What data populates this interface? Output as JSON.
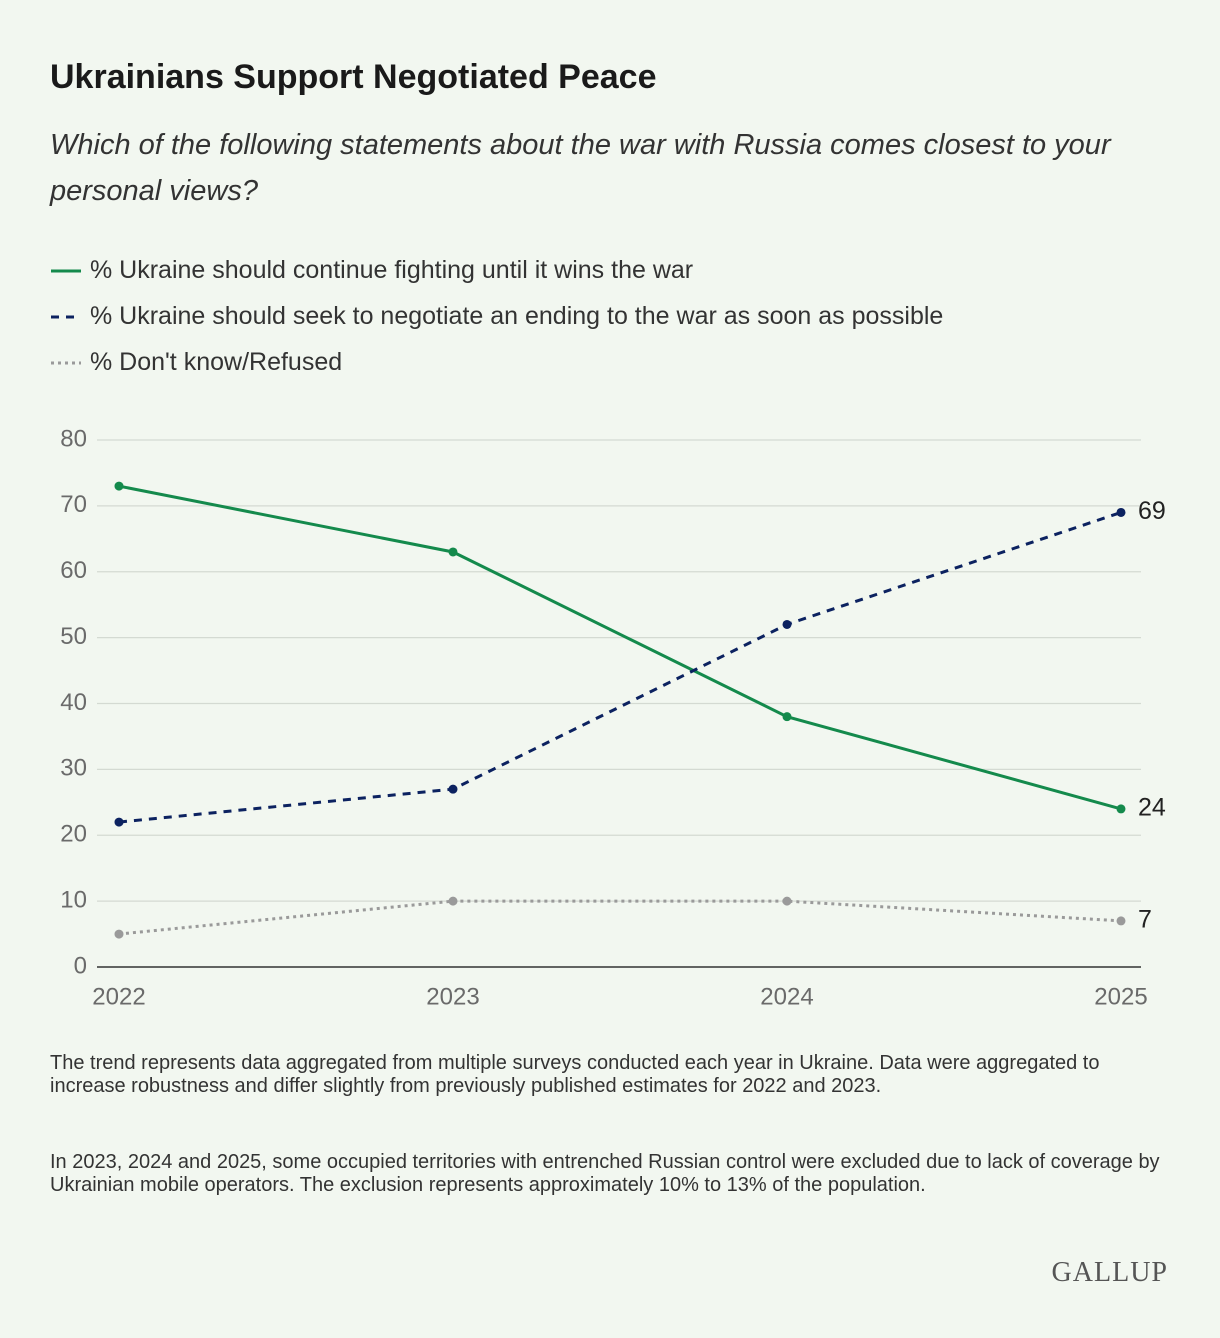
{
  "chart_data": {
    "type": "line",
    "title": "Ukrainians Support Negotiated Peace",
    "subtitle": "Which of the following statements about the war with Russia comes closest to your personal views?",
    "categories": [
      "2022",
      "2023",
      "2024",
      "2025"
    ],
    "series": [
      {
        "name": "% Ukraine should continue fighting until it wins the war",
        "color": "#148a4c",
        "line_style": "solid",
        "values": [
          73,
          63,
          38,
          24
        ]
      },
      {
        "name": "% Ukraine should seek to negotiate an ending to the war as soon as possible",
        "color": "#0c2260",
        "line_style": "dashed",
        "values": [
          22,
          27,
          52,
          69
        ]
      },
      {
        "name": "% Don't know/Refused",
        "color": "#9a9a9a",
        "line_style": "dotted",
        "values": [
          5,
          10,
          10,
          7
        ]
      }
    ],
    "ylim": [
      0,
      80
    ],
    "yticks": [
      0,
      10,
      20,
      30,
      40,
      50,
      60,
      70,
      80
    ],
    "grid": true,
    "end_labels": true,
    "notes": [
      "The trend represents data aggregated from multiple surveys conducted each year in Ukraine. Data were aggregated to increase robustness and differ slightly from previously published estimates for 2022 and 2023.",
      "In 2023, 2024 and 2025, some occupied territories with entrenched Russian control were excluded due to lack of coverage by Ukrainian mobile operators. The exclusion represents approximately 10% to 13% of the population."
    ],
    "source": "GALLUP"
  }
}
